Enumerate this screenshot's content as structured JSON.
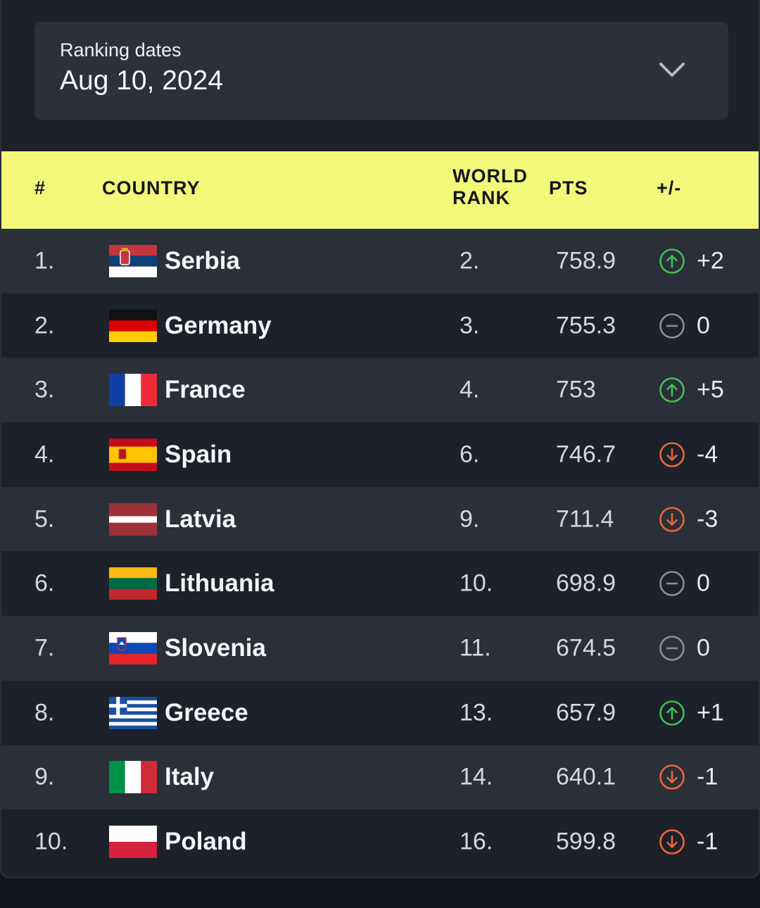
{
  "ranking": {
    "label": "Ranking dates",
    "date": "Aug 10, 2024"
  },
  "table": {
    "headers": {
      "rank": "#",
      "country": "COUNTRY",
      "world_rank_1": "WORLD",
      "world_rank_2": "RANK",
      "pts": "PTS",
      "change": "+/-"
    },
    "rows": [
      {
        "rank": "1.",
        "flag": "serbia-flag",
        "country": "Serbia",
        "world_rank": "2.",
        "pts": "758.9",
        "trend": "up",
        "change": "+2"
      },
      {
        "rank": "2.",
        "flag": "germany-flag",
        "country": "Germany",
        "world_rank": "3.",
        "pts": "755.3",
        "trend": "same",
        "change": "0"
      },
      {
        "rank": "3.",
        "flag": "france-flag",
        "country": "France",
        "world_rank": "4.",
        "pts": "753",
        "trend": "up",
        "change": "+5"
      },
      {
        "rank": "4.",
        "flag": "spain-flag",
        "country": "Spain",
        "world_rank": "6.",
        "pts": "746.7",
        "trend": "down",
        "change": "-4"
      },
      {
        "rank": "5.",
        "flag": "latvia-flag",
        "country": "Latvia",
        "world_rank": "9.",
        "pts": "711.4",
        "trend": "down",
        "change": "-3"
      },
      {
        "rank": "6.",
        "flag": "lithuania-flag",
        "country": "Lithuania",
        "world_rank": "10.",
        "pts": "698.9",
        "trend": "same",
        "change": "0"
      },
      {
        "rank": "7.",
        "flag": "slovenia-flag",
        "country": "Slovenia",
        "world_rank": "11.",
        "pts": "674.5",
        "trend": "same",
        "change": "0"
      },
      {
        "rank": "8.",
        "flag": "greece-flag",
        "country": "Greece",
        "world_rank": "13.",
        "pts": "657.9",
        "trend": "up",
        "change": "+1"
      },
      {
        "rank": "9.",
        "flag": "italy-flag",
        "country": "Italy",
        "world_rank": "14.",
        "pts": "640.1",
        "trend": "down",
        "change": "-1"
      },
      {
        "rank": "10.",
        "flag": "poland-flag",
        "country": "Poland",
        "world_rank": "16.",
        "pts": "599.8",
        "trend": "down",
        "change": "-1"
      }
    ]
  },
  "colors": {
    "header_bg": "#f2f97a",
    "up": "#3fbf5a",
    "down": "#e8663d",
    "same": "#8a8f99"
  }
}
